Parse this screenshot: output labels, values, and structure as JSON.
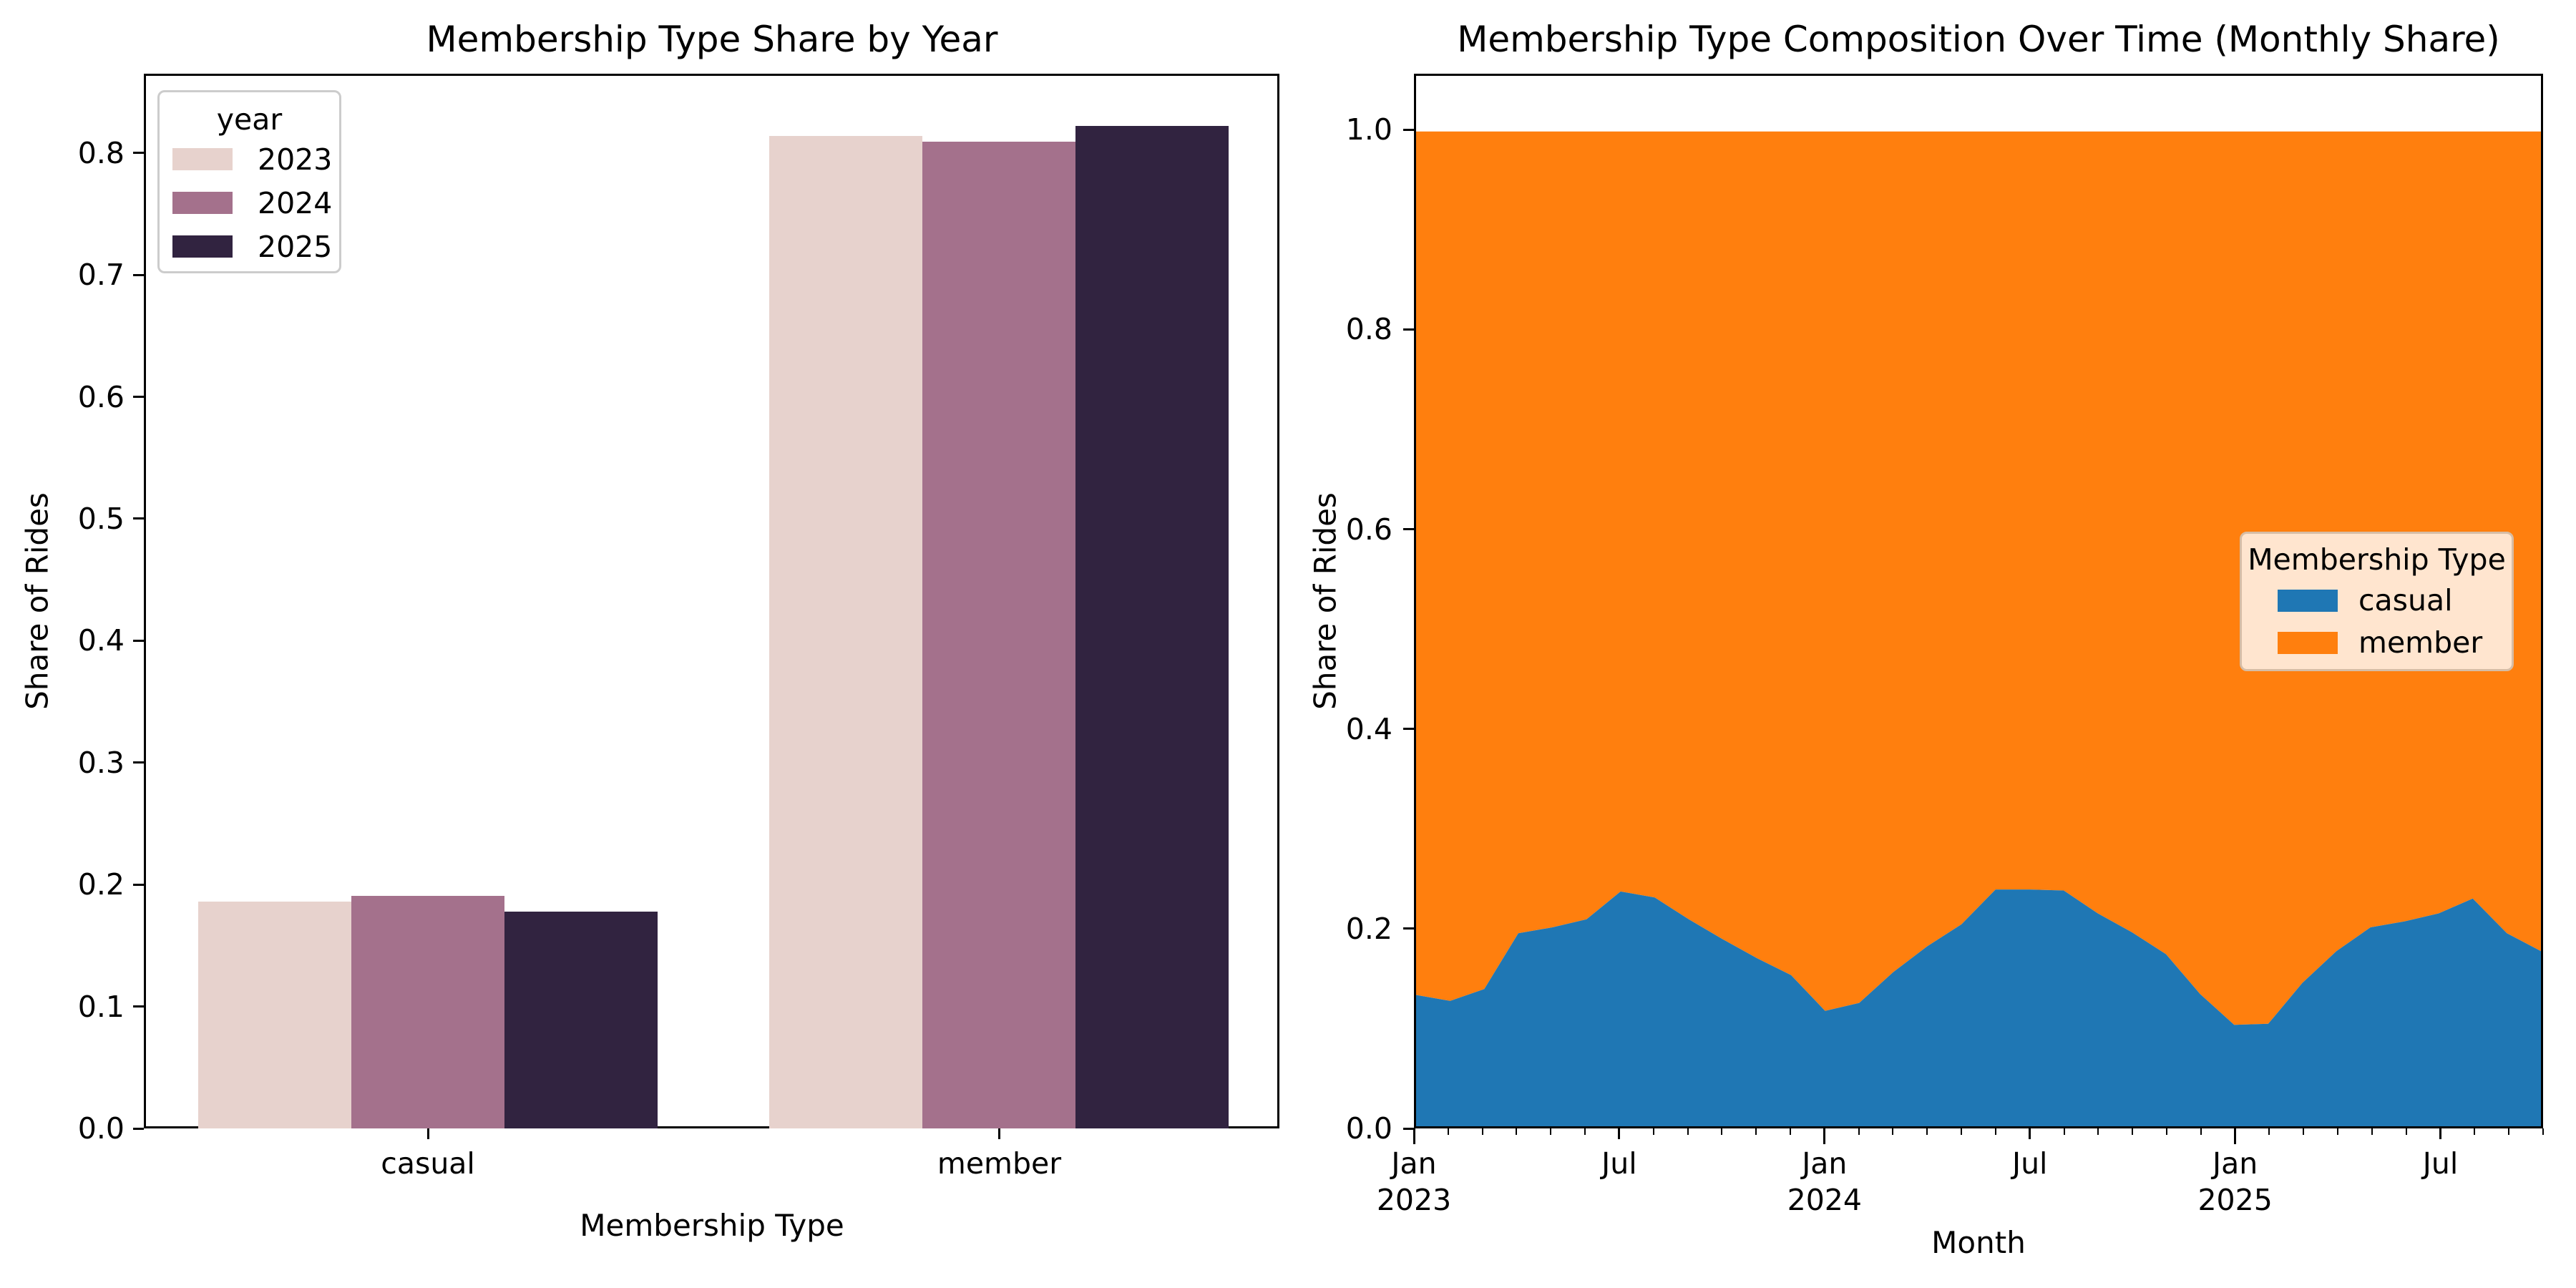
{
  "figure": {
    "background": "#ffffff",
    "text_color": "#000000",
    "spine_color": "#000000"
  },
  "left_chart": {
    "title": "Membership Type Share by Year",
    "xlabel": "Membership Type",
    "ylabel": "Share of Rides",
    "legend_title": "year",
    "ytick_labels": [
      "0.0",
      "0.1",
      "0.2",
      "0.3",
      "0.4",
      "0.5",
      "0.6",
      "0.7",
      "0.8"
    ]
  },
  "right_chart": {
    "title": "Membership Type Composition Over Time (Monthly Share)",
    "xlabel": "Month",
    "ylabel": "Share of Rides",
    "legend_title": "Membership Type",
    "ytick_labels": [
      "0.0",
      "0.2",
      "0.4",
      "0.6",
      "0.8",
      "1.0"
    ],
    "xtick_labels": [
      {
        "label": "Jan",
        "sublabel": "2023",
        "month_index": 0
      },
      {
        "label": "Jul",
        "sublabel": "",
        "month_index": 6
      },
      {
        "label": "Jan",
        "sublabel": "2024",
        "month_index": 12
      },
      {
        "label": "Jul",
        "sublabel": "",
        "month_index": 18
      },
      {
        "label": "Jan",
        "sublabel": "2025",
        "month_index": 24
      },
      {
        "label": "Jul",
        "sublabel": "",
        "month_index": 30
      }
    ],
    "legend_bg": "#ffe5cf",
    "legend_border": "#d6bda6"
  },
  "chart_data": [
    {
      "type": "bar",
      "title": "Membership Type Share by Year",
      "xlabel": "Membership Type",
      "ylabel": "Share of Rides",
      "categories": [
        "casual",
        "member"
      ],
      "series": [
        {
          "name": "2023",
          "color": "#e7d2cd",
          "values": [
            0.186,
            0.814
          ]
        },
        {
          "name": "2024",
          "color": "#a4718c",
          "values": [
            0.191,
            0.809
          ]
        },
        {
          "name": "2025",
          "color": "#312340",
          "values": [
            0.178,
            0.822
          ]
        }
      ],
      "ylim": [
        0,
        0.865
      ],
      "yticks": [
        0.0,
        0.1,
        0.2,
        0.3,
        0.4,
        0.5,
        0.6,
        0.7,
        0.8
      ],
      "legend_title": "year",
      "legend_position": "upper-left",
      "grid": false
    },
    {
      "type": "area",
      "stacked": true,
      "normalized": true,
      "title": "Membership Type Composition Over Time (Monthly Share)",
      "xlabel": "Month",
      "ylabel": "Share of Rides",
      "x": [
        "2023-01",
        "2023-02",
        "2023-03",
        "2023-04",
        "2023-05",
        "2023-06",
        "2023-07",
        "2023-08",
        "2023-09",
        "2023-10",
        "2023-11",
        "2023-12",
        "2024-01",
        "2024-02",
        "2024-03",
        "2024-04",
        "2024-05",
        "2024-06",
        "2024-07",
        "2024-08",
        "2024-09",
        "2024-10",
        "2024-11",
        "2024-12",
        "2025-01",
        "2025-02",
        "2025-03",
        "2025-04",
        "2025-05",
        "2025-06",
        "2025-07",
        "2025-08",
        "2025-09",
        "2025-10"
      ],
      "series": [
        {
          "name": "casual",
          "color": "#1f77b4",
          "values": [
            0.132,
            0.126,
            0.138,
            0.194,
            0.2,
            0.208,
            0.236,
            0.23,
            0.208,
            0.188,
            0.169,
            0.152,
            0.116,
            0.124,
            0.155,
            0.181,
            0.203,
            0.238,
            0.238,
            0.237,
            0.214,
            0.195,
            0.173,
            0.133,
            0.102,
            0.103,
            0.144,
            0.176,
            0.2,
            0.206,
            0.214,
            0.229,
            0.194,
            0.176
          ]
        },
        {
          "name": "member",
          "color": "#ff7f0e",
          "values": [
            0.868,
            0.874,
            0.862,
            0.806,
            0.8,
            0.792,
            0.764,
            0.77,
            0.792,
            0.812,
            0.831,
            0.848,
            0.884,
            0.876,
            0.845,
            0.819,
            0.797,
            0.762,
            0.762,
            0.763,
            0.786,
            0.805,
            0.827,
            0.867,
            0.898,
            0.897,
            0.856,
            0.824,
            0.8,
            0.794,
            0.786,
            0.771,
            0.806,
            0.824
          ]
        }
      ],
      "ylim": [
        0,
        1.056
      ],
      "yticks": [
        0.0,
        0.2,
        0.4,
        0.6,
        0.8,
        1.0
      ],
      "legend_title": "Membership Type",
      "legend_position": "center-right",
      "grid": false
    }
  ]
}
